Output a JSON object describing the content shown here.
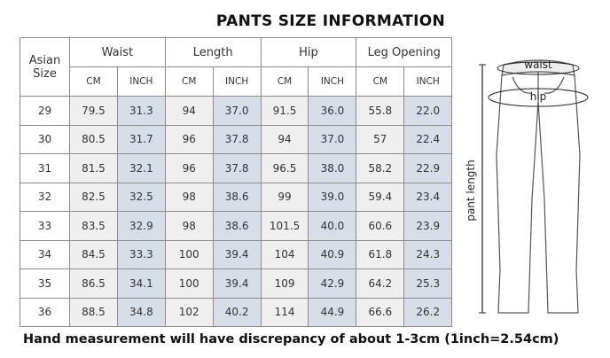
{
  "title": "PANTS SIZE INFORMATION",
  "table": {
    "size_header": "Asian Size",
    "groups": [
      "Waist",
      "Length",
      "Hip",
      "Leg Opening"
    ],
    "units": [
      "CM",
      "INCH"
    ],
    "rows": [
      [
        "29",
        "79.5",
        "31.3",
        "94",
        "37.0",
        "91.5",
        "36.0",
        "55.8",
        "22.0"
      ],
      [
        "30",
        "80.5",
        "31.7",
        "96",
        "37.8",
        "94",
        "37.0",
        "57",
        "22.4"
      ],
      [
        "31",
        "81.5",
        "32.1",
        "96",
        "37.8",
        "96.5",
        "38.0",
        "58.2",
        "22.9"
      ],
      [
        "32",
        "82.5",
        "32.5",
        "98",
        "38.6",
        "99",
        "39.0",
        "59.4",
        "23.4"
      ],
      [
        "33",
        "83.5",
        "32.9",
        "98",
        "38.6",
        "101.5",
        "40.0",
        "60.6",
        "23.9"
      ],
      [
        "34",
        "84.5",
        "33.3",
        "100",
        "39.4",
        "104",
        "40.9",
        "61.8",
        "24.3"
      ],
      [
        "35",
        "86.5",
        "34.1",
        "100",
        "39.4",
        "109",
        "42.9",
        "64.2",
        "25.3"
      ],
      [
        "36",
        "88.5",
        "34.8",
        "102",
        "40.2",
        "114",
        "44.9",
        "66.6",
        "26.2"
      ]
    ]
  },
  "note": "Hand measurement will have discrepancy of about 1-3cm (1inch=2.54cm)",
  "diagram": {
    "waist": "waist",
    "hip": "hip",
    "length": "pant length"
  }
}
